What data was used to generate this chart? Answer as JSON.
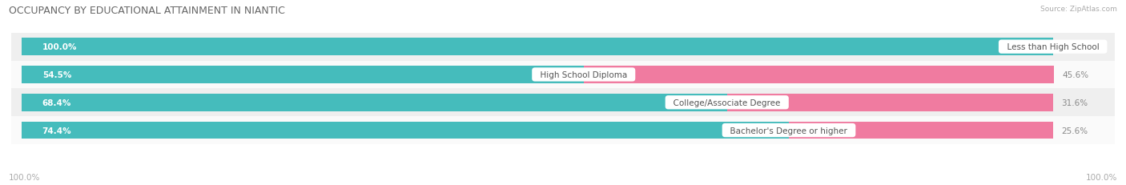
{
  "title": "OCCUPANCY BY EDUCATIONAL ATTAINMENT IN NIANTIC",
  "source": "Source: ZipAtlas.com",
  "categories": [
    "Less than High School",
    "High School Diploma",
    "College/Associate Degree",
    "Bachelor's Degree or higher"
  ],
  "owner_pct": [
    100.0,
    54.5,
    68.4,
    74.4
  ],
  "renter_pct": [
    0.0,
    45.6,
    31.6,
    25.6
  ],
  "owner_color": "#45BCBC",
  "renter_color": "#F07BA0",
  "row_bg_colors": [
    "#EFEFEF",
    "#FAFAFA",
    "#EFEFEF",
    "#FAFAFA"
  ],
  "bar_height": 0.62,
  "figsize": [
    14.06,
    2.32
  ],
  "dpi": 100,
  "axis_label_left": "100.0%",
  "axis_label_right": "100.0%",
  "title_fontsize": 9,
  "label_fontsize": 7.5,
  "bar_label_fontsize": 7.5,
  "category_fontsize": 7.5,
  "source_fontsize": 6.5,
  "owner_label_color": "white",
  "renter_label_color": "#888888",
  "category_label_color": "#555555"
}
